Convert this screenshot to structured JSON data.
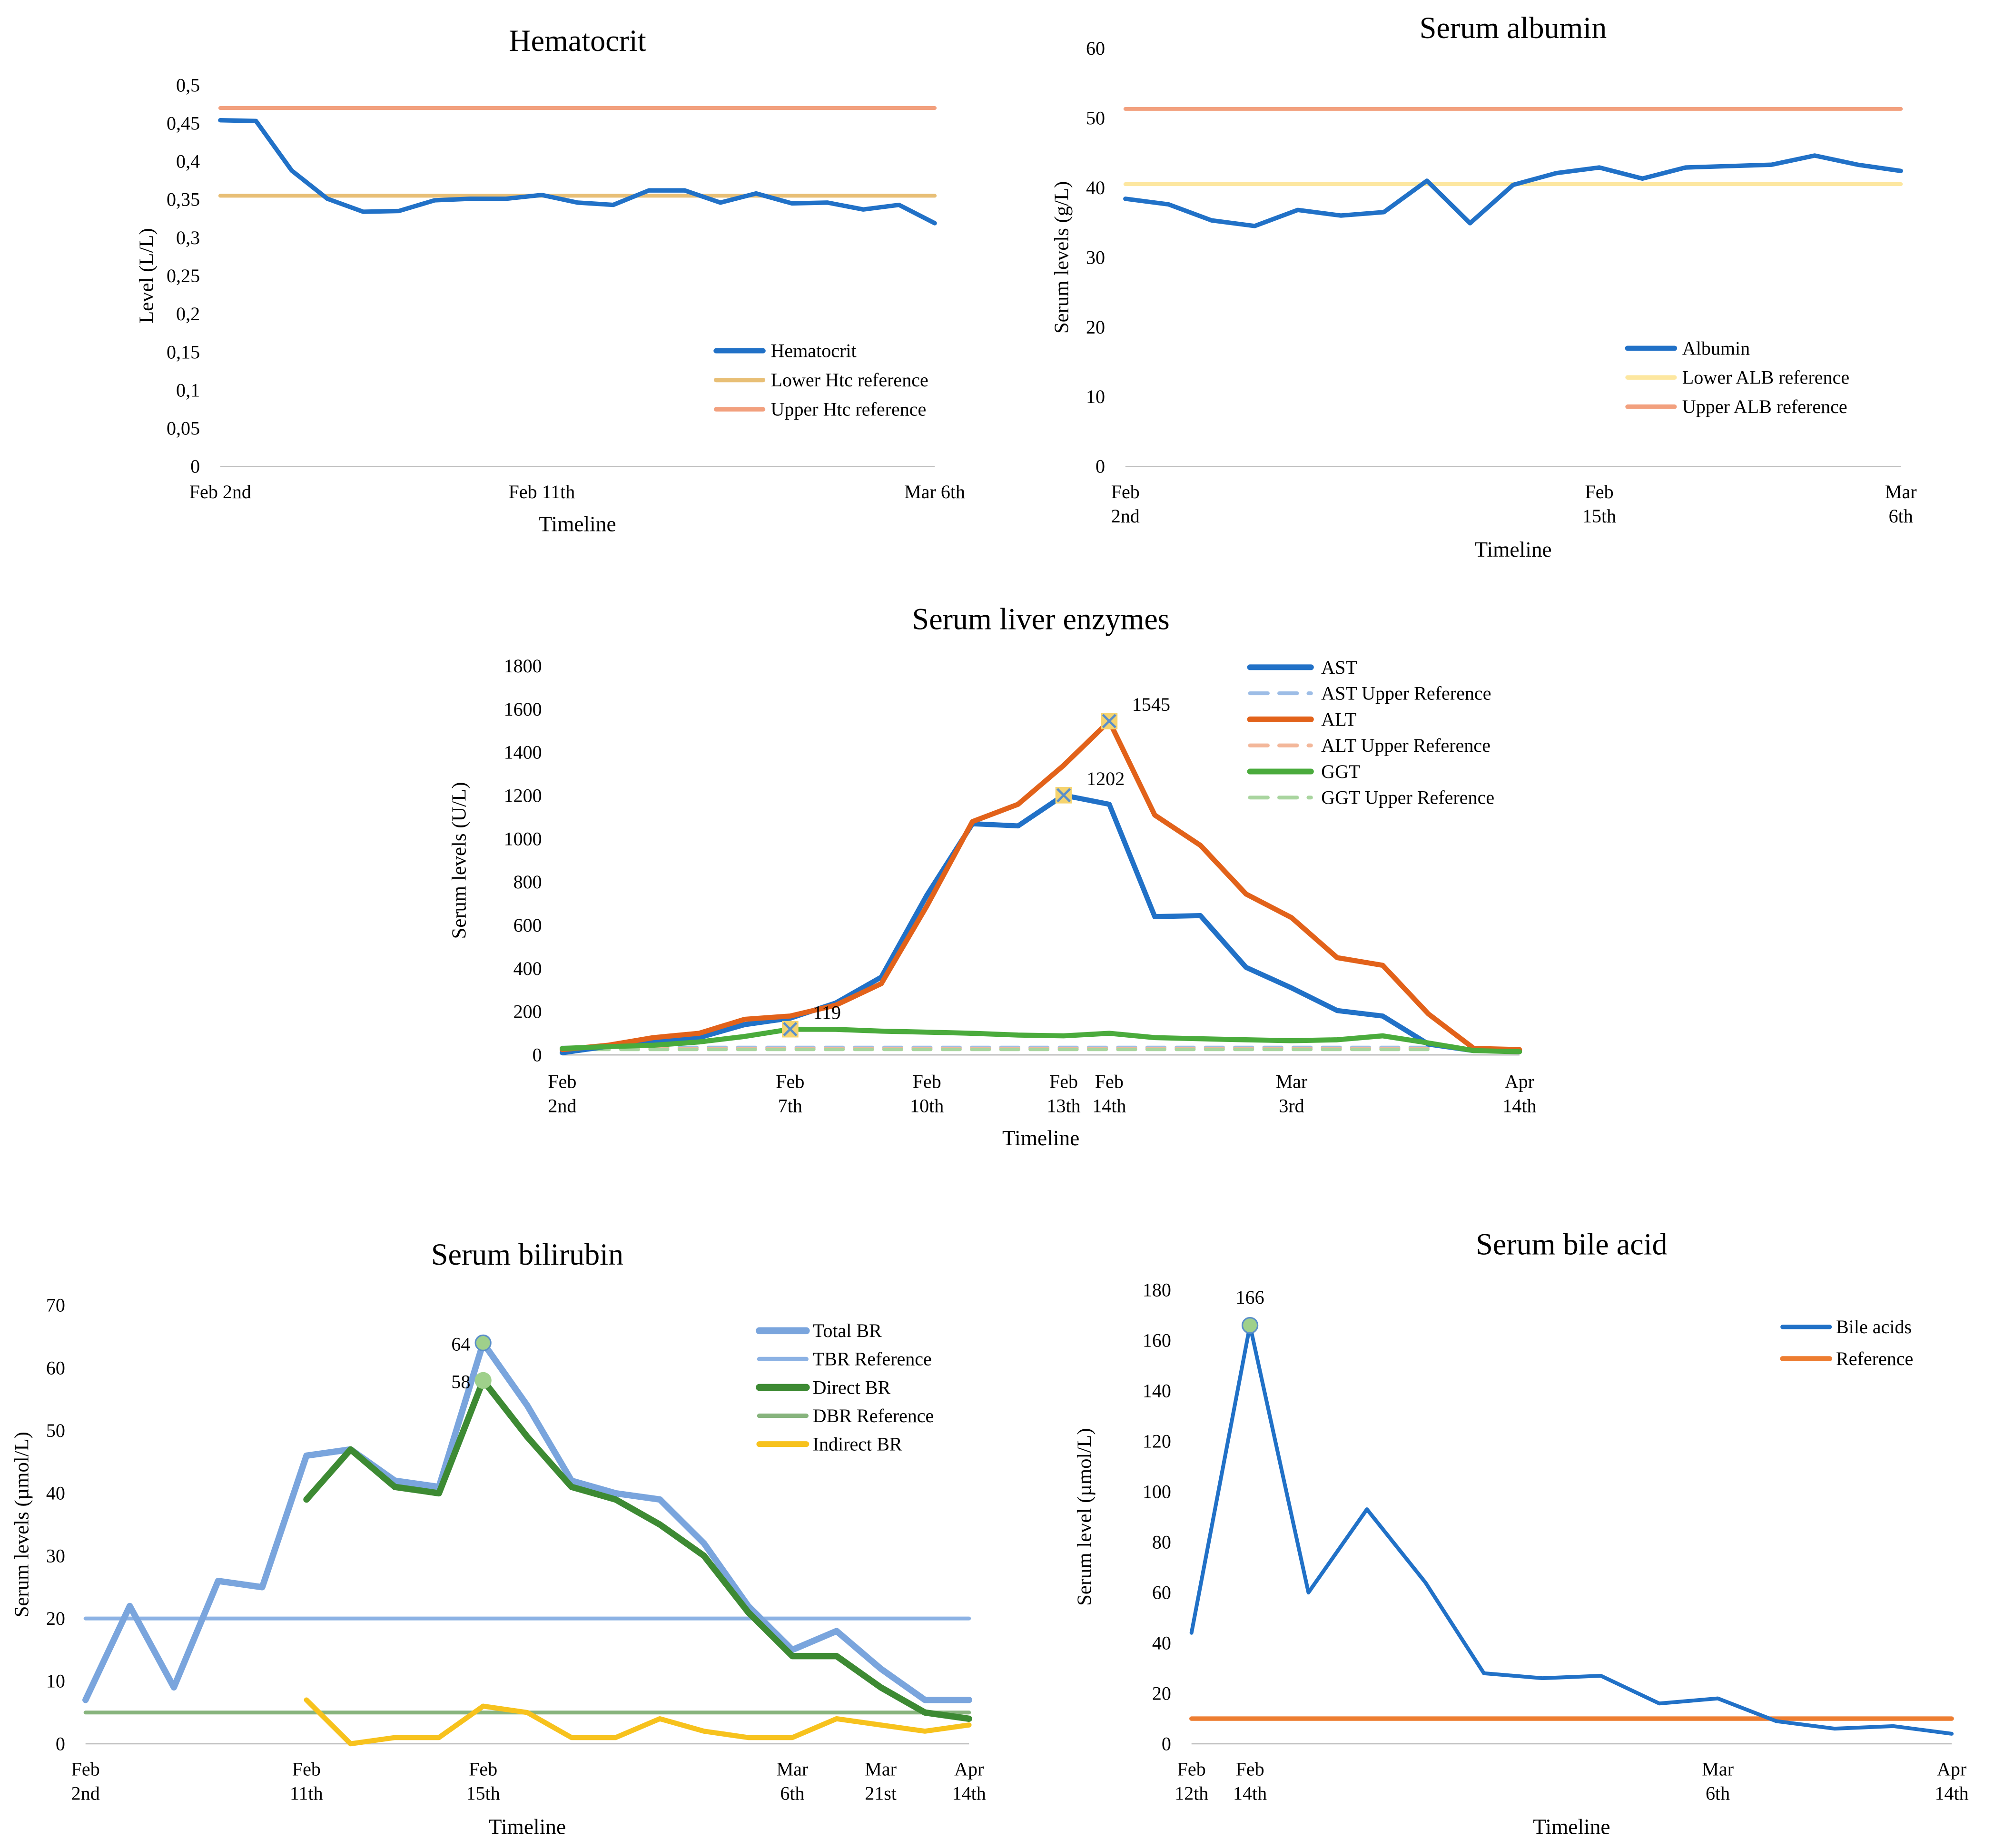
{
  "chart_data": [
    {
      "id": "hct",
      "type": "line",
      "title": "Hematocrit",
      "xlabel": "Timeline",
      "ylabel": "Level (L/L)",
      "ylim": [
        0,
        0.5
      ],
      "yticks": [
        "0",
        "0,05",
        "0,1",
        "0,15",
        "0,2",
        "0,25",
        "0,3",
        "0,35",
        "0,4",
        "0,45",
        "0,5"
      ],
      "xlim": [
        0,
        20
      ],
      "xticks": [
        {
          "x": 0,
          "lines": [
            "Feb 2nd"
          ]
        },
        {
          "x": 9,
          "lines": [
            "Feb 11th"
          ]
        },
        {
          "x": 20,
          "lines": [
            "Mar 6th"
          ]
        }
      ],
      "legend_position": "bottom-right",
      "series": [
        {
          "name": "Hematocrit",
          "color": "#2171c7",
          "width": 3.5,
          "dash": "",
          "x": [
            0,
            1,
            2,
            3,
            4,
            5,
            6,
            7,
            8,
            9,
            10,
            11,
            12,
            13,
            14,
            15,
            16,
            17,
            18,
            19,
            20
          ],
          "values": [
            0.454,
            0.453,
            0.388,
            0.351,
            0.334,
            0.335,
            0.349,
            0.351,
            0.351,
            0.356,
            0.346,
            0.343,
            0.362,
            0.362,
            0.346,
            0.358,
            0.345,
            0.346,
            0.337,
            0.343,
            0.319
          ]
        },
        {
          "name": "Lower Htc reference",
          "color": "#e8bf76",
          "width": 3,
          "dash": "",
          "x": [
            0,
            20
          ],
          "values": [
            0.355,
            0.355
          ]
        },
        {
          "name": "Upper Htc reference",
          "color": "#f2a07e",
          "width": 3,
          "dash": "",
          "x": [
            0,
            20
          ],
          "values": [
            0.47,
            0.47
          ]
        }
      ],
      "points": []
    },
    {
      "id": "alb",
      "type": "line",
      "title": "Serum albumin",
      "xlabel": "Timeline",
      "ylabel": "Serum levels (g/L)",
      "ylim": [
        0,
        60
      ],
      "yticks": [
        "0",
        "10",
        "20",
        "30",
        "40",
        "50",
        "60"
      ],
      "xlim": [
        0,
        18
      ],
      "xticks": [
        {
          "x": 0,
          "lines": [
            "Feb",
            "2nd"
          ]
        },
        {
          "x": 11,
          "lines": [
            "Feb",
            "15th"
          ]
        },
        {
          "x": 18,
          "lines": [
            "Mar",
            "6th"
          ]
        }
      ],
      "legend_position": "bottom-right",
      "series": [
        {
          "name": "Albumin",
          "color": "#2171c7",
          "width": 3.5,
          "dash": "",
          "x": [
            0,
            1,
            2,
            3,
            4,
            5,
            6,
            7,
            8,
            9,
            10,
            11,
            12,
            13,
            14,
            15,
            16,
            17,
            18
          ],
          "values": [
            38.4,
            37.6,
            35.3,
            34.5,
            36.8,
            36.0,
            36.5,
            41.0,
            34.9,
            40.4,
            42.1,
            42.9,
            41.3,
            42.9,
            43.1,
            43.3,
            44.6,
            43.3,
            42.4
          ]
        },
        {
          "name": "Lower ALB reference",
          "color": "#fde7a0",
          "width": 3,
          "dash": "",
          "x": [
            0,
            18
          ],
          "values": [
            40.5,
            40.5
          ]
        },
        {
          "name": "Upper ALB reference",
          "color": "#f2a07e",
          "width": 3,
          "dash": "",
          "x": [
            0,
            18
          ],
          "values": [
            51.3,
            51.3
          ]
        }
      ],
      "points": []
    },
    {
      "id": "liver",
      "type": "line",
      "title": "Serum liver enzymes",
      "xlabel": "Timeline",
      "ylabel": "Serum levels (U/L)",
      "ylim": [
        0,
        1800
      ],
      "yticks": [
        "0",
        "200",
        "400",
        "600",
        "800",
        "1000",
        "1200",
        "1400",
        "1600",
        "1800"
      ],
      "xlim": [
        0,
        21
      ],
      "xticks": [
        {
          "x": 0,
          "lines": [
            "Feb",
            "2nd"
          ]
        },
        {
          "x": 5,
          "lines": [
            "Feb",
            "7th"
          ]
        },
        {
          "x": 8,
          "lines": [
            "Feb",
            "10th"
          ]
        },
        {
          "x": 11,
          "lines": [
            "Feb",
            "13th"
          ]
        },
        {
          "x": 12,
          "lines": [
            "Feb",
            "14th"
          ]
        },
        {
          "x": 16,
          "lines": [
            "Mar",
            "3rd"
          ]
        },
        {
          "x": 21,
          "lines": [
            "Apr",
            "14th"
          ]
        }
      ],
      "legend_position": "top-right",
      "series": [
        {
          "name": "AST",
          "color": "#2171c7",
          "width": 4,
          "dash": "",
          "x": [
            0,
            1,
            2,
            3,
            4,
            5,
            6,
            7,
            8,
            9,
            10,
            11,
            12,
            13,
            14,
            15,
            16,
            17,
            18,
            19,
            20,
            21
          ],
          "values": [
            10,
            40,
            60,
            80,
            140,
            170,
            240,
            360,
            740,
            1070,
            1060,
            1202,
            1160,
            640,
            645,
            405,
            310,
            205,
            180,
            50,
            20,
            20
          ]
        },
        {
          "name": "AST Upper Reference",
          "color": "#9dbde6",
          "width": 2.5,
          "dash": "14 9",
          "x": [
            0,
            19
          ],
          "values": [
            35,
            35
          ]
        },
        {
          "name": "ALT",
          "color": "#e2621a",
          "width": 4,
          "dash": "",
          "x": [
            0,
            1,
            2,
            3,
            4,
            5,
            6,
            7,
            8,
            9,
            10,
            11,
            12,
            13,
            14,
            15,
            16,
            17,
            18,
            19,
            20,
            21
          ],
          "values": [
            25,
            45,
            80,
            100,
            165,
            180,
            230,
            330,
            690,
            1080,
            1160,
            1340,
            1545,
            1110,
            970,
            745,
            635,
            450,
            415,
            190,
            30,
            25
          ]
        },
        {
          "name": "ALT Upper Reference",
          "color": "#f3b79a",
          "width": 2.5,
          "dash": "14 9",
          "x": [
            0,
            19
          ],
          "values": [
            30,
            30
          ]
        },
        {
          "name": "GGT",
          "color": "#4aab3c",
          "width": 4,
          "dash": "",
          "x": [
            0,
            1,
            2,
            3,
            4,
            5,
            6,
            7,
            8,
            9,
            10,
            11,
            12,
            13,
            14,
            15,
            16,
            17,
            18,
            19,
            20,
            21
          ],
          "values": [
            30,
            38,
            45,
            60,
            85,
            119,
            118,
            110,
            105,
            100,
            92,
            88,
            100,
            80,
            75,
            70,
            66,
            70,
            88,
            55,
            20,
            15
          ]
        },
        {
          "name": "GGT Upper Reference",
          "color": "#a9d59f",
          "width": 2.5,
          "dash": "14 9",
          "x": [
            0,
            19
          ],
          "values": [
            25,
            25
          ]
        }
      ],
      "points": [
        {
          "x": 5,
          "y": 119,
          "label": "119",
          "marker": "x-square",
          "fill": "#f5d36e",
          "stroke": "#5b8fc9"
        },
        {
          "x": 11,
          "y": 1202,
          "label": "1202",
          "marker": "x-square",
          "fill": "#f5d36e",
          "stroke": "#5b8fc9"
        },
        {
          "x": 12,
          "y": 1545,
          "label": "1545",
          "marker": "x-square",
          "fill": "#f5d36e",
          "stroke": "#5b8fc9"
        }
      ]
    },
    {
      "id": "bili",
      "type": "line",
      "title": "Serum bilirubin",
      "xlabel": "Timeline",
      "ylabel": "Serum levels (µmol/L)",
      "ylim": [
        0,
        70
      ],
      "yticks": [
        "0",
        "10",
        "20",
        "30",
        "40",
        "50",
        "60",
        "70"
      ],
      "xlim": [
        0,
        20
      ],
      "xticks": [
        {
          "x": 0,
          "lines": [
            "Feb",
            "2nd"
          ]
        },
        {
          "x": 5,
          "lines": [
            "Feb",
            "11th"
          ]
        },
        {
          "x": 9,
          "lines": [
            "Feb",
            "15th"
          ]
        },
        {
          "x": 16,
          "lines": [
            "Mar",
            "6th"
          ]
        },
        {
          "x": 18,
          "lines": [
            "Mar",
            "21st"
          ]
        },
        {
          "x": 20,
          "lines": [
            "Apr",
            "14th"
          ]
        }
      ],
      "legend_position": "top-right",
      "series": [
        {
          "name": "Total BR",
          "color": "#7aa5dd",
          "width": 5,
          "dash": "",
          "x": [
            0,
            1,
            2,
            3,
            4,
            5,
            6,
            7,
            8,
            9,
            10,
            11,
            12,
            13,
            14,
            15,
            16,
            17,
            18,
            19,
            20
          ],
          "values": [
            7,
            22,
            9,
            26,
            25,
            46,
            47,
            42,
            41,
            64,
            54,
            42,
            40,
            39,
            32,
            22,
            15,
            18,
            12,
            7,
            7
          ]
        },
        {
          "name": "TBR Reference",
          "color": "#8cb2e4",
          "width": 3,
          "dash": "",
          "x": [
            0,
            20
          ],
          "values": [
            20,
            20
          ]
        },
        {
          "name": "Direct BR",
          "color": "#3d8a33",
          "width": 5,
          "dash": "",
          "x": [
            5,
            6,
            7,
            8,
            9,
            10,
            11,
            12,
            13,
            14,
            15,
            16,
            17,
            18,
            19,
            20
          ],
          "values": [
            39,
            47,
            41,
            40,
            58,
            49,
            41,
            39,
            35,
            30,
            21,
            14,
            14,
            9,
            5,
            4
          ]
        },
        {
          "name": "DBR Reference",
          "color": "#87b47d",
          "width": 3,
          "dash": "",
          "x": [
            0,
            20
          ],
          "values": [
            5,
            5
          ]
        },
        {
          "name": "Indirect BR",
          "color": "#f7c21d",
          "width": 4,
          "dash": "",
          "x": [
            5,
            6,
            7,
            8,
            9,
            10,
            11,
            12,
            13,
            14,
            15,
            16,
            17,
            18,
            19,
            20
          ],
          "values": [
            7,
            0,
            1,
            1,
            6,
            5,
            1,
            1,
            4,
            2,
            1,
            1,
            4,
            3,
            2,
            3
          ]
        }
      ],
      "points": [
        {
          "x": 9,
          "y": 64,
          "label": "64",
          "marker": "circle",
          "fill": "#9fd08b",
          "stroke": "#5b8fc9"
        },
        {
          "x": 9,
          "y": 58,
          "label": "58",
          "marker": "circle",
          "fill": "#9fd08b",
          "stroke": "#9fd08b"
        }
      ]
    },
    {
      "id": "bile",
      "type": "line",
      "title": "Serum bile acid",
      "xlabel": "Timeline",
      "ylabel": "Serum level (µmol/L)",
      "ylim": [
        0,
        180
      ],
      "yticks": [
        "0",
        "20",
        "40",
        "60",
        "80",
        "100",
        "120",
        "140",
        "160",
        "180"
      ],
      "xlim": [
        0,
        13
      ],
      "xticks": [
        {
          "x": 0,
          "lines": [
            "Feb",
            "12th"
          ]
        },
        {
          "x": 1,
          "lines": [
            "Feb",
            "14th"
          ]
        },
        {
          "x": 9,
          "lines": [
            "Mar",
            "6th"
          ]
        },
        {
          "x": 13,
          "lines": [
            "Apr",
            "14th"
          ]
        }
      ],
      "legend_position": "top-right",
      "series": [
        {
          "name": "Bile acids",
          "color": "#2171c7",
          "width": 3,
          "dash": "",
          "x": [
            0,
            1,
            2,
            3,
            4,
            5,
            6,
            7,
            8,
            9,
            10,
            11,
            12,
            13
          ],
          "values": [
            44,
            166,
            60,
            93,
            64,
            28,
            26,
            27,
            16,
            18,
            9,
            6,
            7,
            4
          ]
        },
        {
          "name": "Reference",
          "color": "#ed7d31",
          "width": 3.5,
          "dash": "",
          "x": [
            0,
            13
          ],
          "values": [
            10,
            10
          ]
        }
      ],
      "points": [
        {
          "x": 1,
          "y": 166,
          "label": "166",
          "marker": "circle",
          "fill": "#9fd08b",
          "stroke": "#5b8fc9"
        }
      ]
    }
  ]
}
